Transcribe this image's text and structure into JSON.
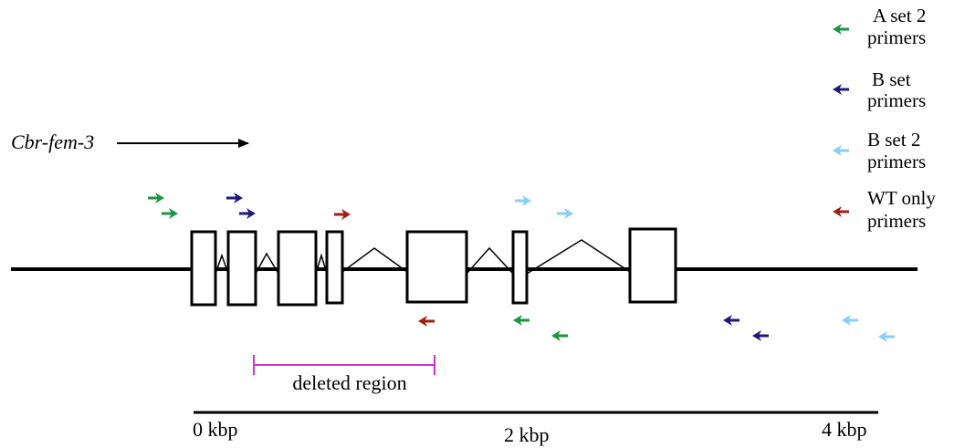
{
  "gene": {
    "name": "Cbr-fem-3"
  },
  "legend": {
    "items": [
      {
        "line1": "A set 2",
        "line2": "primers",
        "color": "#1a9641"
      },
      {
        "line1": "B set",
        "line2": "primers",
        "color": "#1f1a7a"
      },
      {
        "line1": "B set 2",
        "line2": "primers",
        "color": "#87cefa"
      },
      {
        "line1": "WT only",
        "line2": "primers",
        "color": "#a51d12"
      }
    ]
  },
  "deletion": {
    "label": "deleted region",
    "color": "#cc33cc"
  },
  "scale": {
    "ticks": [
      "0 kbp",
      "2 kbp",
      "4 kbp"
    ]
  },
  "colors": {
    "a_set_2": "#1a9641",
    "b_set": "#1f1a7a",
    "b_set_2": "#87cefa",
    "wt_only": "#a51d12"
  }
}
